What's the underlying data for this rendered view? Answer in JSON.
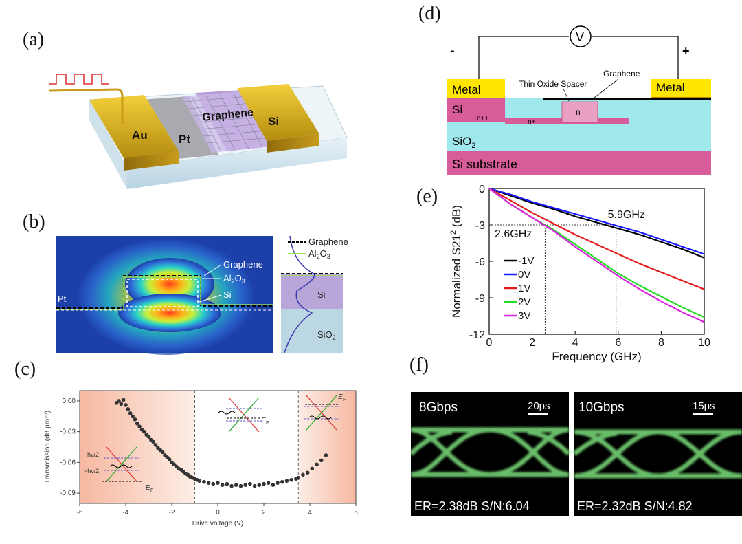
{
  "labels": {
    "a": "(a)",
    "b": "(b)",
    "c": "(c)",
    "d": "(d)",
    "e": "(e)",
    "f": "(f)"
  },
  "panel_a": {
    "au": "Au",
    "pt": "Pt",
    "graphene": "Graphene",
    "si": "Si"
  },
  "panel_b": {
    "pt": "Pt",
    "graphene": "Graphene",
    "al2o3": "Al",
    "al2o3_sub": "2",
    "al2o3_end": "O",
    "al2o3_sub2": "3",
    "si": "Si",
    "legend_graphene": "Graphene",
    "legend_al": "Al",
    "legend_sub": "2",
    "legend_o": "O",
    "legend_sub2": "3",
    "side_si": "Si",
    "side_sio": "SiO",
    "side_sub": "2"
  },
  "panel_d": {
    "minus": "-",
    "plus": "+",
    "volt": "V",
    "metal_left": "Metal",
    "metal_right": "Metal",
    "spacer": "Thin Oxide Spacer",
    "graphene": "Graphene",
    "si": "Si",
    "npp": "n++",
    "np": "n+",
    "n": "n",
    "sio2": "SiO",
    "sio2_sub": "2",
    "substrate": "Si substrate"
  },
  "panel_f": {
    "left_title": "8Gbps",
    "left_scale": "20ps",
    "left_footer": "ER=2.38dB  S/N:6.04",
    "right_title": "10Gbps",
    "right_scale": "15ps",
    "right_footer": "ER=2.32dB  S/N:4.82"
  },
  "chart_data": [
    {
      "id": "c",
      "type": "scatter",
      "title": "",
      "xlabel": "Drive voltage (V)",
      "ylabel": "Transmission (dB µm⁻¹)",
      "xlim": [
        -6,
        6
      ],
      "ylim": [
        -0.1,
        0.01
      ],
      "xticks": [
        "-6",
        "-4",
        "-2",
        "0",
        "2",
        "4",
        "6"
      ],
      "yticks": [
        "0.00",
        "-0.03",
        "-0.06",
        "-0.09"
      ],
      "vlines": [
        -1,
        3.5
      ],
      "annotations": [
        "hν/2",
        "−hν/2",
        "E",
        "F",
        "E",
        "F",
        "E",
        "F"
      ],
      "points": [
        [
          -4.4,
          -0.002
        ],
        [
          -4.3,
          0.0
        ],
        [
          -4.2,
          -0.003
        ],
        [
          -4.1,
          0.001
        ],
        [
          -4.0,
          -0.004
        ],
        [
          -3.9,
          -0.008
        ],
        [
          -3.8,
          -0.012
        ],
        [
          -3.7,
          -0.015
        ],
        [
          -3.6,
          -0.018
        ],
        [
          -3.5,
          -0.022
        ],
        [
          -3.4,
          -0.025
        ],
        [
          -3.3,
          -0.028
        ],
        [
          -3.2,
          -0.03
        ],
        [
          -3.1,
          -0.033
        ],
        [
          -3.0,
          -0.035
        ],
        [
          -2.9,
          -0.038
        ],
        [
          -2.8,
          -0.04
        ],
        [
          -2.7,
          -0.043
        ],
        [
          -2.6,
          -0.046
        ],
        [
          -2.5,
          -0.048
        ],
        [
          -2.4,
          -0.05
        ],
        [
          -2.3,
          -0.053
        ],
        [
          -2.2,
          -0.055
        ],
        [
          -2.1,
          -0.057
        ],
        [
          -2.0,
          -0.06
        ],
        [
          -1.9,
          -0.062
        ],
        [
          -1.8,
          -0.064
        ],
        [
          -1.7,
          -0.066
        ],
        [
          -1.6,
          -0.067
        ],
        [
          -1.5,
          -0.069
        ],
        [
          -1.4,
          -0.071
        ],
        [
          -1.3,
          -0.072
        ],
        [
          -1.2,
          -0.074
        ],
        [
          -1.1,
          -0.075
        ],
        [
          -1.0,
          -0.076
        ],
        [
          -0.9,
          -0.077
        ],
        [
          -0.8,
          -0.078
        ],
        [
          -0.6,
          -0.079
        ],
        [
          -0.4,
          -0.08
        ],
        [
          -0.2,
          -0.081
        ],
        [
          0.0,
          -0.08
        ],
        [
          0.2,
          -0.082
        ],
        [
          0.4,
          -0.081
        ],
        [
          0.6,
          -0.083
        ],
        [
          0.8,
          -0.082
        ],
        [
          1.0,
          -0.083
        ],
        [
          1.2,
          -0.082
        ],
        [
          1.4,
          -0.081
        ],
        [
          1.6,
          -0.083
        ],
        [
          1.8,
          -0.082
        ],
        [
          2.0,
          -0.081
        ],
        [
          2.2,
          -0.08
        ],
        [
          2.4,
          -0.082
        ],
        [
          2.6,
          -0.08
        ],
        [
          2.8,
          -0.079
        ],
        [
          3.0,
          -0.078
        ],
        [
          3.2,
          -0.077
        ],
        [
          3.4,
          -0.076
        ],
        [
          3.5,
          -0.075
        ],
        [
          3.7,
          -0.072
        ],
        [
          3.9,
          -0.07
        ],
        [
          4.1,
          -0.066
        ],
        [
          4.3,
          -0.062
        ],
        [
          4.5,
          -0.058
        ],
        [
          4.7,
          -0.053
        ]
      ]
    },
    {
      "id": "e",
      "type": "line",
      "title": "",
      "xlabel": "Frequency (GHz)",
      "ylabel": "Normalized S21",
      "ylabel_sup": "2",
      "ylabel_unit": " (dB)",
      "xlim": [
        0,
        10
      ],
      "ylim": [
        -12,
        0
      ],
      "xticks": [
        "0",
        "2",
        "4",
        "6",
        "8",
        "10"
      ],
      "yticks": [
        "0",
        "-3",
        "-6",
        "-9",
        "-12"
      ],
      "annotations": [
        "5.9GHz",
        "2.6GHz"
      ],
      "markers": [
        {
          "x": 2.6,
          "y": -3
        },
        {
          "x": 5.9,
          "y": -3
        }
      ],
      "x": [
        0,
        1,
        2,
        3,
        4,
        5,
        6,
        7,
        8,
        9,
        10
      ],
      "series": [
        {
          "name": "-1V",
          "color": "#000000",
          "values": [
            0,
            -0.6,
            -1.2,
            -1.7,
            -2.3,
            -2.8,
            -3.3,
            -3.8,
            -4.4,
            -5.0,
            -5.7
          ]
        },
        {
          "name": "0V",
          "color": "#1a1aff",
          "values": [
            0,
            -0.5,
            -1.1,
            -1.6,
            -2.1,
            -2.6,
            -3.1,
            -3.6,
            -4.2,
            -4.8,
            -5.4
          ]
        },
        {
          "name": "1V",
          "color": "#e31a1a",
          "values": [
            0,
            -1.0,
            -2.0,
            -2.9,
            -3.8,
            -4.6,
            -5.4,
            -6.2,
            -6.9,
            -7.6,
            -8.3
          ]
        },
        {
          "name": "2V",
          "color": "#22dd22",
          "values": [
            0,
            -1.3,
            -2.4,
            -3.4,
            -4.6,
            -5.8,
            -7.0,
            -8.0,
            -8.9,
            -9.8,
            -10.6
          ]
        },
        {
          "name": "3V",
          "color": "#dd22dd",
          "values": [
            0,
            -1.3,
            -2.4,
            -3.5,
            -4.8,
            -6.0,
            -7.2,
            -8.3,
            -9.3,
            -10.2,
            -11.0
          ]
        }
      ]
    }
  ]
}
